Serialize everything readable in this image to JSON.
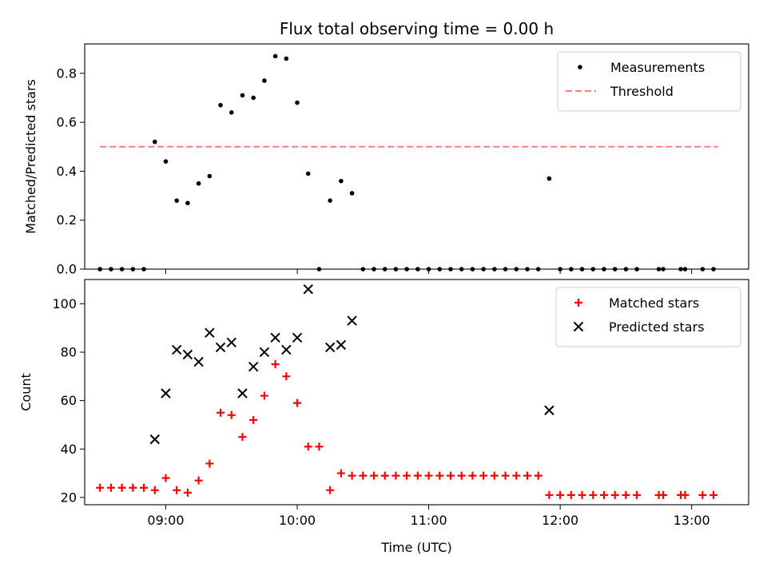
{
  "chart_data": {
    "title": "Flux total observing time = 0.00 h",
    "xlabel": "Time (UTC)",
    "x_unit": "time of day",
    "xlim": [
      "08:23",
      "13:26"
    ],
    "xticks": [
      "09:00",
      "10:00",
      "11:00",
      "12:00",
      "13:00"
    ],
    "panels": [
      {
        "type": "scatter",
        "ylabel": "Matched/Predicted stars",
        "ylim": [
          0,
          0.92
        ],
        "yticks": [
          "0.0",
          "0.2",
          "0.4",
          "0.6",
          "0.8"
        ],
        "legend_position": "top-right",
        "series": [
          {
            "name": "Measurements",
            "marker": "dot",
            "color": "#000000",
            "points": [
              [
                "08:30",
                0.0
              ],
              [
                "08:35",
                0.0
              ],
              [
                "08:40",
                0.0
              ],
              [
                "08:45",
                0.0
              ],
              [
                "08:50",
                0.0
              ],
              [
                "08:55",
                0.52
              ],
              [
                "09:00",
                0.44
              ],
              [
                "09:05",
                0.28
              ],
              [
                "09:10",
                0.27
              ],
              [
                "09:15",
                0.35
              ],
              [
                "09:20",
                0.38
              ],
              [
                "09:25",
                0.67
              ],
              [
                "09:30",
                0.64
              ],
              [
                "09:35",
                0.71
              ],
              [
                "09:40",
                0.7
              ],
              [
                "09:45",
                0.77
              ],
              [
                "09:50",
                0.87
              ],
              [
                "09:55",
                0.86
              ],
              [
                "10:00",
                0.68
              ],
              [
                "10:05",
                0.39
              ],
              [
                "10:10",
                0.0
              ],
              [
                "10:15",
                0.28
              ],
              [
                "10:20",
                0.36
              ],
              [
                "10:25",
                0.31
              ],
              [
                "10:30",
                0.0
              ],
              [
                "10:35",
                0.0
              ],
              [
                "10:40",
                0.0
              ],
              [
                "10:45",
                0.0
              ],
              [
                "10:50",
                0.0
              ],
              [
                "10:55",
                0.0
              ],
              [
                "11:00",
                0.0
              ],
              [
                "11:05",
                0.0
              ],
              [
                "11:10",
                0.0
              ],
              [
                "11:15",
                0.0
              ],
              [
                "11:20",
                0.0
              ],
              [
                "11:25",
                0.0
              ],
              [
                "11:30",
                0.0
              ],
              [
                "11:35",
                0.0
              ],
              [
                "11:40",
                0.0
              ],
              [
                "11:45",
                0.0
              ],
              [
                "11:50",
                0.0
              ],
              [
                "11:55",
                0.37
              ],
              [
                "12:00",
                0.0
              ],
              [
                "12:05",
                0.0
              ],
              [
                "12:10",
                0.0
              ],
              [
                "12:15",
                0.0
              ],
              [
                "12:20",
                0.0
              ],
              [
                "12:25",
                0.0
              ],
              [
                "12:30",
                0.0
              ],
              [
                "12:35",
                0.0
              ],
              [
                "12:45",
                0.0
              ],
              [
                "12:47",
                0.0
              ],
              [
                "12:55",
                0.0
              ],
              [
                "12:57",
                0.0
              ],
              [
                "13:05",
                0.0
              ],
              [
                "13:10",
                0.0
              ]
            ]
          },
          {
            "name": "Threshold",
            "kind": "dashed-line",
            "color": "#ff7b7b",
            "points": [
              [
                "08:30",
                0.5
              ],
              [
                "13:12",
                0.5
              ]
            ]
          }
        ]
      },
      {
        "type": "scatter",
        "ylabel": "Count",
        "ylim": [
          17,
          110
        ],
        "yticks": [
          "20",
          "40",
          "60",
          "80",
          "100"
        ],
        "legend_position": "top-right",
        "series": [
          {
            "name": "Matched stars",
            "marker": "plus",
            "color": "#ff0000",
            "points": [
              [
                "08:30",
                24
              ],
              [
                "08:35",
                24
              ],
              [
                "08:40",
                24
              ],
              [
                "08:45",
                24
              ],
              [
                "08:50",
                24
              ],
              [
                "08:55",
                23
              ],
              [
                "09:00",
                28
              ],
              [
                "09:05",
                23
              ],
              [
                "09:10",
                22
              ],
              [
                "09:15",
                27
              ],
              [
                "09:20",
                34
              ],
              [
                "09:25",
                55
              ],
              [
                "09:30",
                54
              ],
              [
                "09:35",
                45
              ],
              [
                "09:40",
                52
              ],
              [
                "09:45",
                62
              ],
              [
                "09:50",
                75
              ],
              [
                "09:55",
                70
              ],
              [
                "10:00",
                59
              ],
              [
                "10:05",
                41
              ],
              [
                "10:10",
                41
              ],
              [
                "10:15",
                23
              ],
              [
                "10:20",
                30
              ],
              [
                "10:25",
                29
              ],
              [
                "10:30",
                29
              ],
              [
                "10:35",
                29
              ],
              [
                "10:40",
                29
              ],
              [
                "10:45",
                29
              ],
              [
                "10:50",
                29
              ],
              [
                "10:55",
                29
              ],
              [
                "11:00",
                29
              ],
              [
                "11:05",
                29
              ],
              [
                "11:10",
                29
              ],
              [
                "11:15",
                29
              ],
              [
                "11:20",
                29
              ],
              [
                "11:25",
                29
              ],
              [
                "11:30",
                29
              ],
              [
                "11:35",
                29
              ],
              [
                "11:40",
                29
              ],
              [
                "11:45",
                29
              ],
              [
                "11:50",
                29
              ],
              [
                "11:55",
                21
              ],
              [
                "12:00",
                21
              ],
              [
                "12:05",
                21
              ],
              [
                "12:10",
                21
              ],
              [
                "12:15",
                21
              ],
              [
                "12:20",
                21
              ],
              [
                "12:25",
                21
              ],
              [
                "12:30",
                21
              ],
              [
                "12:35",
                21
              ],
              [
                "12:45",
                21
              ],
              [
                "12:47",
                21
              ],
              [
                "12:55",
                21
              ],
              [
                "12:57",
                21
              ],
              [
                "13:05",
                21
              ],
              [
                "13:10",
                21
              ]
            ]
          },
          {
            "name": "Predicted stars",
            "marker": "x",
            "color": "#000000",
            "points": [
              [
                "08:55",
                44
              ],
              [
                "09:00",
                63
              ],
              [
                "09:05",
                81
              ],
              [
                "09:10",
                79
              ],
              [
                "09:15",
                76
              ],
              [
                "09:20",
                88
              ],
              [
                "09:25",
                82
              ],
              [
                "09:30",
                84
              ],
              [
                "09:35",
                63
              ],
              [
                "09:40",
                74
              ],
              [
                "09:45",
                80
              ],
              [
                "09:50",
                86
              ],
              [
                "09:55",
                81
              ],
              [
                "10:00",
                86
              ],
              [
                "10:05",
                106
              ],
              [
                "10:15",
                82
              ],
              [
                "10:20",
                83
              ],
              [
                "10:25",
                93
              ],
              [
                "11:55",
                56
              ]
            ]
          }
        ]
      }
    ]
  }
}
